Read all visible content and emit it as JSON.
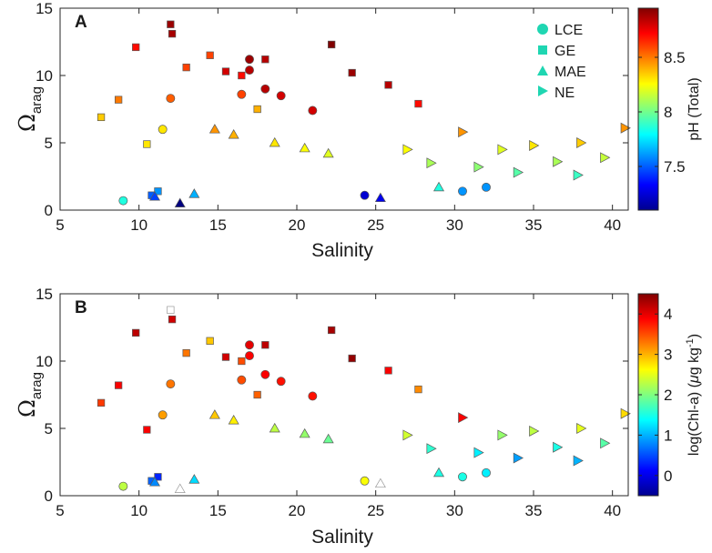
{
  "chart_data": [
    {
      "type": "scatter",
      "panel_label": "A",
      "xlabel": "Salinity",
      "ylabel": "Ω",
      "ylabel_sub": "arag",
      "xlim": [
        5,
        41
      ],
      "ylim": [
        0,
        15
      ],
      "xticks": [
        "5",
        "10",
        "15",
        "20",
        "25",
        "30",
        "35",
        "40"
      ],
      "yticks": [
        "0",
        "5",
        "10",
        "15"
      ],
      "legend": [
        "LCE",
        "GE",
        "MAE",
        "NE"
      ],
      "legend_markers": [
        "circle",
        "square",
        "triangle-up",
        "triangle-right"
      ],
      "colorbar": {
        "label": "pH (Total)",
        "range": [
          7.1,
          8.95
        ],
        "ticks": [
          "7.5",
          "8",
          "8.5"
        ]
      },
      "series": [
        {
          "name": "LCE",
          "points": [
            [
              17.0,
              11.2,
              8.9
            ],
            [
              17.0,
              10.4,
              8.85
            ],
            [
              19.0,
              8.5,
              8.8
            ],
            [
              18.0,
              9.0,
              8.85
            ],
            [
              21.0,
              7.4,
              8.8
            ],
            [
              12.0,
              8.3,
              8.55
            ],
            [
              16.5,
              8.6,
              8.6
            ],
            [
              24.3,
              1.1,
              7.25
            ],
            [
              30.5,
              1.4,
              7.6
            ],
            [
              32.0,
              1.7,
              7.6
            ],
            [
              9.0,
              0.7,
              7.85
            ],
            [
              11.5,
              6.0,
              8.3
            ]
          ]
        },
        {
          "name": "GE",
          "points": [
            [
              12.0,
              13.8,
              8.9
            ],
            [
              12.1,
              13.1,
              8.88
            ],
            [
              22.2,
              12.3,
              8.95
            ],
            [
              9.8,
              12.1,
              8.7
            ],
            [
              13.0,
              10.6,
              8.6
            ],
            [
              14.5,
              11.5,
              8.6
            ],
            [
              15.5,
              10.3,
              8.8
            ],
            [
              16.5,
              10.0,
              8.7
            ],
            [
              18.0,
              11.2,
              8.85
            ],
            [
              23.5,
              10.2,
              8.9
            ],
            [
              25.8,
              9.3,
              8.85
            ],
            [
              27.7,
              7.9,
              8.7
            ],
            [
              8.7,
              8.2,
              8.5
            ],
            [
              7.6,
              6.9,
              8.35
            ],
            [
              17.5,
              7.5,
              8.4
            ],
            [
              10.5,
              4.9,
              8.3
            ],
            [
              10.8,
              1.1,
              7.5
            ],
            [
              11.2,
              1.4,
              7.6
            ]
          ]
        },
        {
          "name": "MAE",
          "points": [
            [
              12.6,
              0.5,
              7.1
            ],
            [
              25.3,
              0.9,
              7.3
            ],
            [
              11.0,
              1.0,
              7.45
            ],
            [
              13.5,
              1.2,
              7.65
            ],
            [
              29.0,
              1.7,
              7.85
            ],
            [
              14.8,
              6.0,
              8.45
            ],
            [
              16.0,
              5.6,
              8.4
            ],
            [
              18.6,
              5.0,
              8.3
            ],
            [
              20.5,
              4.6,
              8.25
            ],
            [
              22.0,
              4.2,
              8.2
            ]
          ]
        },
        {
          "name": "NE",
          "points": [
            [
              40.8,
              6.1,
              8.45
            ],
            [
              38.0,
              5.0,
              8.35
            ],
            [
              35.0,
              4.8,
              8.3
            ],
            [
              33.0,
              4.5,
              8.2
            ],
            [
              30.5,
              5.8,
              8.45
            ],
            [
              27.0,
              4.5,
              8.25
            ],
            [
              36.5,
              3.6,
              8.1
            ],
            [
              39.5,
              3.9,
              8.15
            ],
            [
              31.5,
              3.2,
              8.05
            ],
            [
              28.5,
              3.5,
              8.1
            ],
            [
              34.0,
              2.8,
              7.95
            ],
            [
              37.8,
              2.6,
              7.9
            ]
          ]
        }
      ]
    },
    {
      "type": "scatter",
      "panel_label": "B",
      "xlabel": "Salinity",
      "ylabel": "Ω",
      "ylabel_sub": "arag",
      "xlim": [
        5,
        41
      ],
      "ylim": [
        0,
        15
      ],
      "xticks": [
        "5",
        "10",
        "15",
        "20",
        "25",
        "30",
        "35",
        "40"
      ],
      "yticks": [
        "0",
        "5",
        "10",
        "15"
      ],
      "colorbar": {
        "label": "log(Chl-a) (μg kg-1)",
        "label_main": "log(Chl-a) (",
        "label_mu": "μ",
        "label_unit": "g kg",
        "label_exp": "-1",
        "label_close": ")",
        "range": [
          -0.5,
          4.5
        ],
        "ticks": [
          "0",
          "1",
          "2",
          "3",
          "4"
        ]
      },
      "open_marker_note": "open symbols = Chl-a not available",
      "series": [
        {
          "name": "LCE",
          "points": [
            [
              17.0,
              11.2,
              4.0
            ],
            [
              17.0,
              10.4,
              3.9
            ],
            [
              19.0,
              8.5,
              3.8
            ],
            [
              18.0,
              9.0,
              3.9
            ],
            [
              21.0,
              7.4,
              3.8
            ],
            [
              12.0,
              8.3,
              3.3
            ],
            [
              16.5,
              8.6,
              3.5
            ],
            [
              24.3,
              1.1,
              2.6
            ],
            [
              30.5,
              1.4,
              1.5
            ],
            [
              32.0,
              1.7,
              1.3
            ],
            [
              9.0,
              0.7,
              2.3
            ],
            [
              11.5,
              6.0,
              3.1
            ]
          ]
        },
        {
          "name": "GE",
          "points": [
            [
              12.0,
              13.8,
              null
            ],
            [
              12.1,
              13.1,
              4.1
            ],
            [
              22.2,
              12.3,
              4.3
            ],
            [
              9.8,
              12.1,
              4.2
            ],
            [
              13.0,
              10.6,
              3.3
            ],
            [
              14.5,
              11.5,
              2.9
            ],
            [
              15.5,
              10.3,
              4.1
            ],
            [
              16.5,
              10.0,
              3.5
            ],
            [
              18.0,
              11.2,
              4.2
            ],
            [
              23.5,
              10.2,
              4.4
            ],
            [
              25.8,
              9.3,
              3.9
            ],
            [
              27.7,
              7.9,
              3.2
            ],
            [
              8.7,
              8.2,
              3.9
            ],
            [
              7.6,
              6.9,
              3.6
            ],
            [
              17.5,
              7.5,
              3.4
            ],
            [
              10.5,
              4.9,
              3.9
            ],
            [
              10.8,
              1.1,
              0.6
            ],
            [
              11.2,
              1.4,
              0.3
            ]
          ]
        },
        {
          "name": "MAE",
          "points": [
            [
              12.6,
              0.5,
              null
            ],
            [
              25.3,
              0.9,
              null
            ],
            [
              11.0,
              1.0,
              0.8
            ],
            [
              13.5,
              1.2,
              1.2
            ],
            [
              29.0,
              1.7,
              1.5
            ],
            [
              14.8,
              6.0,
              2.9
            ],
            [
              16.0,
              5.6,
              2.7
            ],
            [
              18.6,
              5.0,
              2.3
            ],
            [
              20.5,
              4.6,
              2.1
            ],
            [
              22.0,
              4.2,
              1.9
            ]
          ]
        },
        {
          "name": "NE",
          "points": [
            [
              40.8,
              6.1,
              2.8
            ],
            [
              38.0,
              5.0,
              2.5
            ],
            [
              35.0,
              4.8,
              2.3
            ],
            [
              33.0,
              4.5,
              2.1
            ],
            [
              30.5,
              5.8,
              3.9
            ],
            [
              27.0,
              4.5,
              2.4
            ],
            [
              36.5,
              3.6,
              1.5
            ],
            [
              39.5,
              3.9,
              1.8
            ],
            [
              31.5,
              3.2,
              1.3
            ],
            [
              28.5,
              3.5,
              1.6
            ],
            [
              34.0,
              2.8,
              0.9
            ],
            [
              37.8,
              2.6,
              1.0
            ]
          ]
        }
      ]
    }
  ]
}
